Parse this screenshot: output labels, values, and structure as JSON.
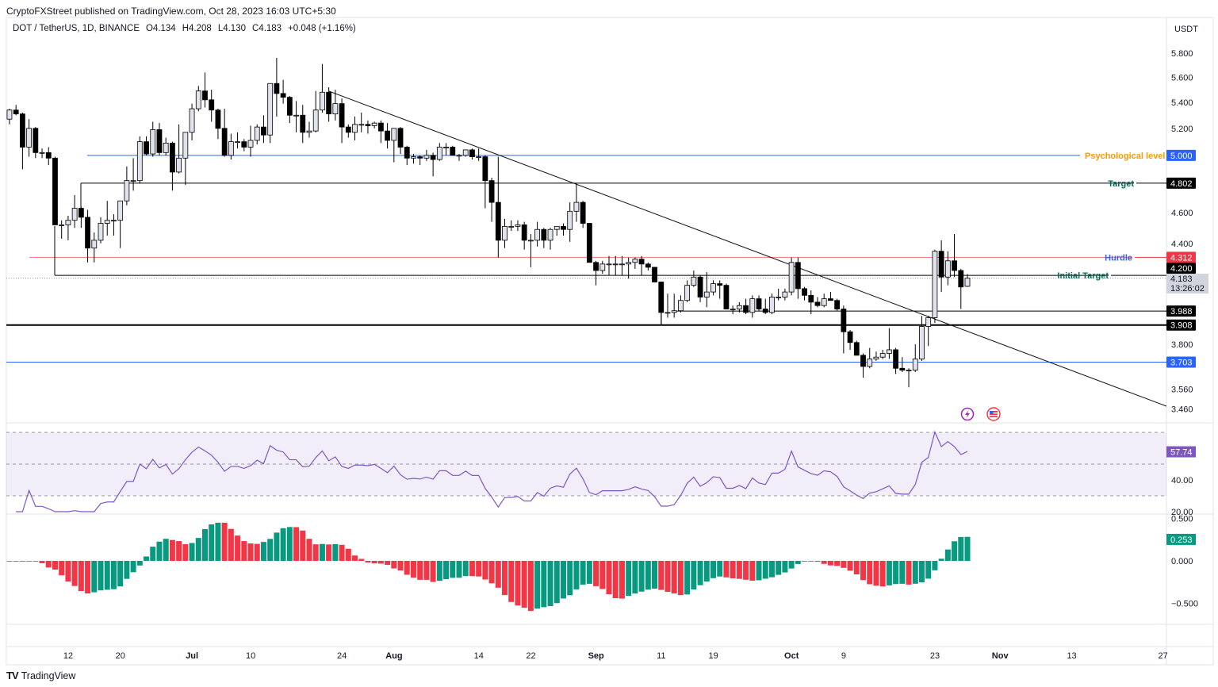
{
  "header": {
    "published": "CryptoFXStreet published on TradingView.com, Oct 28, 2023 16:03 UTC+5:30",
    "symbol": "DOT / TetherUS, 1D, BINANCE",
    "open": "O4.134",
    "high": "H4.208",
    "low": "L4.130",
    "close": "C4.183",
    "change": "+0.048 (+1.16%)"
  },
  "footer": {
    "brand": "TradingView"
  },
  "colors": {
    "up_body": "#e0e3eb",
    "down_body": "#000000",
    "rsi": "#7e57c2",
    "ao_up": "#089981",
    "ao_down": "#f23645",
    "blue_level": "#2962ff",
    "red_level": "#f23645",
    "label_orange": "#ff9800",
    "label_green": "#056656"
  },
  "chart_data": [
    {
      "type": "candlestick",
      "currency": "USDT",
      "yscale": "log",
      "ylim": [
        3.42,
        5.95
      ],
      "grid": false,
      "price_ticks": [
        "5.800",
        "5.600",
        "5.400",
        "5.200",
        "4.600",
        "4.400",
        "3.800",
        "3.560",
        "3.460"
      ],
      "time_ticks": [
        "12",
        "20",
        "Jul",
        "10",
        "24",
        "Aug",
        "14",
        "22",
        "Sep",
        "11",
        "19",
        "Oct",
        "9",
        "23",
        "Nov",
        "13",
        "27"
      ],
      "last_price": "4.183",
      "countdown": "13:26:02",
      "ohlc": [
        [
          5.27,
          5.35,
          5.23,
          5.34
        ],
        [
          5.34,
          5.38,
          5.3,
          5.31
        ],
        [
          5.31,
          5.32,
          4.9,
          5.06
        ],
        [
          5.06,
          5.27,
          4.99,
          5.2
        ],
        [
          5.2,
          5.21,
          4.98,
          5.02
        ],
        [
          5.02,
          5.05,
          4.98,
          5.02
        ],
        [
          5.02,
          5.06,
          4.93,
          4.98
        ],
        [
          4.98,
          4.99,
          4.52,
          4.52
        ],
        [
          4.52,
          4.55,
          4.43,
          4.52
        ],
        [
          4.52,
          4.58,
          4.42,
          4.55
        ],
        [
          4.55,
          4.72,
          4.5,
          4.63
        ],
        [
          4.63,
          4.64,
          4.5,
          4.57
        ],
        [
          4.57,
          4.62,
          4.28,
          4.37
        ],
        [
          4.37,
          4.47,
          4.28,
          4.42
        ],
        [
          4.42,
          4.57,
          4.4,
          4.53
        ],
        [
          4.53,
          4.68,
          4.45,
          4.55
        ],
        [
          4.55,
          4.59,
          4.45,
          4.55
        ],
        [
          4.55,
          4.68,
          4.37,
          4.68
        ],
        [
          4.68,
          4.92,
          4.65,
          4.82
        ],
        [
          4.82,
          4.98,
          4.75,
          4.82
        ],
        [
          4.82,
          5.14,
          4.8,
          5.1
        ],
        [
          5.1,
          5.14,
          5.0,
          5.01
        ],
        [
          5.01,
          5.25,
          4.99,
          5.19
        ],
        [
          5.19,
          5.24,
          5.0,
          5.02
        ],
        [
          5.02,
          5.13,
          5.0,
          5.09
        ],
        [
          5.09,
          5.1,
          4.75,
          4.88
        ],
        [
          4.88,
          5.23,
          4.87,
          4.98
        ],
        [
          4.98,
          5.17,
          4.79,
          5.17
        ],
        [
          5.17,
          5.39,
          5.11,
          5.35
        ],
        [
          5.35,
          5.53,
          5.33,
          5.49
        ],
        [
          5.49,
          5.64,
          5.36,
          5.42
        ],
        [
          5.42,
          5.5,
          5.25,
          5.34
        ],
        [
          5.34,
          5.35,
          5.12,
          5.2
        ],
        [
          5.2,
          5.35,
          4.99,
          5.0
        ],
        [
          5.0,
          5.16,
          4.97,
          5.1
        ],
        [
          5.1,
          5.17,
          5.05,
          5.1
        ],
        [
          5.1,
          5.12,
          5.03,
          5.06
        ],
        [
          5.06,
          5.22,
          4.99,
          5.11
        ],
        [
          5.11,
          5.23,
          5.08,
          5.21
        ],
        [
          5.21,
          5.3,
          5.09,
          5.15
        ],
        [
          5.15,
          5.55,
          5.09,
          5.55
        ],
        [
          5.55,
          5.76,
          5.29,
          5.47
        ],
        [
          5.47,
          5.58,
          5.39,
          5.44
        ],
        [
          5.44,
          5.45,
          5.24,
          5.3
        ],
        [
          5.3,
          5.41,
          5.17,
          5.3
        ],
        [
          5.3,
          5.38,
          5.09,
          5.17
        ],
        [
          5.17,
          5.25,
          5.13,
          5.18
        ],
        [
          5.18,
          5.49,
          5.17,
          5.34
        ],
        [
          5.34,
          5.71,
          5.32,
          5.48
        ],
        [
          5.48,
          5.52,
          5.25,
          5.31
        ],
        [
          5.31,
          5.5,
          5.26,
          5.39
        ],
        [
          5.39,
          5.43,
          5.09,
          5.21
        ],
        [
          5.21,
          5.23,
          5.13,
          5.17
        ],
        [
          5.17,
          5.29,
          5.11,
          5.23
        ],
        [
          5.23,
          5.32,
          5.17,
          5.23
        ],
        [
          5.23,
          5.26,
          5.16,
          5.22
        ],
        [
          5.22,
          5.25,
          5.2,
          5.24
        ],
        [
          5.24,
          5.26,
          5.09,
          5.18
        ],
        [
          5.18,
          5.24,
          5.05,
          5.11
        ],
        [
          5.11,
          5.2,
          4.95,
          5.2
        ],
        [
          5.2,
          5.21,
          5.01,
          5.06
        ],
        [
          5.06,
          5.07,
          4.93,
          4.98
        ],
        [
          4.98,
          5.01,
          4.94,
          4.99
        ],
        [
          4.99,
          5.0,
          4.93,
          4.98
        ],
        [
          4.98,
          5.04,
          4.96,
          5.0
        ],
        [
          5.0,
          5.02,
          4.85,
          4.97
        ],
        [
          4.97,
          5.09,
          4.96,
          5.06
        ],
        [
          5.06,
          5.09,
          5.0,
          5.06
        ],
        [
          5.06,
          5.07,
          5.0,
          5.0
        ],
        [
          5.0,
          5.01,
          4.96,
          5.0
        ],
        [
          5.0,
          5.04,
          4.99,
          5.04
        ],
        [
          5.04,
          5.05,
          4.97,
          4.99
        ],
        [
          4.99,
          5.05,
          4.96,
          4.99
        ],
        [
          4.99,
          5.0,
          4.63,
          4.82
        ],
        [
          4.82,
          4.84,
          4.54,
          4.67
        ],
        [
          4.67,
          4.99,
          4.31,
          4.42
        ],
        [
          4.42,
          4.56,
          4.37,
          4.51
        ],
        [
          4.51,
          4.55,
          4.48,
          4.51
        ],
        [
          4.51,
          4.55,
          4.48,
          4.52
        ],
        [
          4.52,
          4.54,
          4.36,
          4.42
        ],
        [
          4.42,
          4.46,
          4.25,
          4.42
        ],
        [
          4.42,
          4.54,
          4.38,
          4.49
        ],
        [
          4.49,
          4.5,
          4.37,
          4.42
        ],
        [
          4.42,
          4.5,
          4.36,
          4.49
        ],
        [
          4.49,
          4.51,
          4.45,
          4.51
        ],
        [
          4.51,
          4.53,
          4.45,
          4.49
        ],
        [
          4.49,
          4.67,
          4.41,
          4.61
        ],
        [
          4.61,
          4.8,
          4.54,
          4.67
        ],
        [
          4.67,
          4.68,
          4.5,
          4.53
        ],
        [
          4.53,
          4.53,
          4.28,
          4.28
        ],
        [
          4.28,
          4.29,
          4.14,
          4.23
        ],
        [
          4.23,
          4.29,
          4.21,
          4.27
        ],
        [
          4.27,
          4.32,
          4.2,
          4.27
        ],
        [
          4.27,
          4.32,
          4.2,
          4.27
        ],
        [
          4.27,
          4.32,
          4.2,
          4.27
        ],
        [
          4.27,
          4.31,
          4.18,
          4.28
        ],
        [
          4.28,
          4.31,
          4.24,
          4.3
        ],
        [
          4.3,
          4.32,
          4.2,
          4.27
        ],
        [
          4.27,
          4.28,
          4.23,
          4.25
        ],
        [
          4.25,
          4.25,
          4.16,
          4.16
        ],
        [
          4.16,
          4.16,
          3.91,
          3.98
        ],
        [
          3.98,
          4.09,
          3.95,
          3.98
        ],
        [
          3.98,
          4.09,
          3.95,
          3.99
        ],
        [
          3.99,
          4.08,
          3.98,
          4.05
        ],
        [
          4.05,
          4.17,
          4.04,
          4.14
        ],
        [
          4.14,
          4.23,
          4.13,
          4.19
        ],
        [
          4.19,
          4.2,
          4.04,
          4.07
        ],
        [
          4.07,
          4.22,
          4.01,
          4.1
        ],
        [
          4.1,
          4.17,
          4.08,
          4.15
        ],
        [
          4.15,
          4.17,
          4.06,
          4.14
        ],
        [
          4.14,
          4.15,
          4.0,
          4.0
        ],
        [
          4.0,
          4.02,
          3.97,
          4.0
        ],
        [
          4.0,
          4.04,
          3.98,
          4.02
        ],
        [
          4.02,
          4.06,
          3.97,
          3.98
        ],
        [
          3.98,
          4.08,
          3.95,
          4.06
        ],
        [
          4.06,
          4.08,
          3.99,
          4.0
        ],
        [
          4.0,
          4.06,
          3.97,
          3.98
        ],
        [
          3.98,
          4.09,
          3.97,
          4.07
        ],
        [
          4.07,
          4.12,
          4.05,
          4.07
        ],
        [
          4.07,
          4.12,
          4.05,
          4.1
        ],
        [
          4.1,
          4.31,
          4.08,
          4.28
        ],
        [
          4.28,
          4.31,
          4.06,
          4.12
        ],
        [
          4.12,
          4.13,
          4.05,
          4.08
        ],
        [
          4.08,
          4.11,
          3.97,
          4.04
        ],
        [
          4.04,
          4.07,
          4.01,
          4.02
        ],
        [
          4.02,
          4.09,
          4.01,
          4.06
        ],
        [
          4.06,
          4.1,
          4.05,
          4.05
        ],
        [
          4.05,
          4.06,
          3.99,
          4.0
        ],
        [
          4.0,
          4.02,
          3.75,
          3.87
        ],
        [
          3.87,
          3.88,
          3.77,
          3.81
        ],
        [
          3.81,
          3.82,
          3.74,
          3.74
        ],
        [
          3.74,
          3.75,
          3.62,
          3.68
        ],
        [
          3.68,
          3.78,
          3.67,
          3.72
        ],
        [
          3.72,
          3.76,
          3.71,
          3.73
        ],
        [
          3.73,
          3.77,
          3.72,
          3.75
        ],
        [
          3.75,
          3.89,
          3.72,
          3.77
        ],
        [
          3.77,
          3.78,
          3.64,
          3.67
        ],
        [
          3.67,
          3.73,
          3.65,
          3.66
        ],
        [
          3.66,
          3.67,
          3.57,
          3.66
        ],
        [
          3.66,
          3.8,
          3.65,
          3.72
        ],
        [
          3.72,
          3.96,
          3.71,
          3.9
        ],
        [
          3.9,
          3.96,
          3.79,
          3.95
        ],
        [
          3.95,
          4.36,
          3.92,
          4.35
        ],
        [
          4.35,
          4.42,
          4.1,
          4.19
        ],
        [
          4.19,
          4.35,
          4.14,
          4.29
        ],
        [
          4.29,
          4.46,
          4.19,
          4.23
        ],
        [
          4.23,
          4.24,
          4.0,
          4.13
        ],
        [
          4.134,
          4.208,
          4.13,
          4.183
        ]
      ],
      "levels": [
        {
          "name": "Psychological level",
          "price": "5.000",
          "color": "#2962ff",
          "label_color": "#ff9800"
        },
        {
          "name": "Target",
          "price": "4.802",
          "color": "#000000",
          "label_color": "#056656"
        },
        {
          "name": "Hurdle",
          "price": "4.312",
          "color": "#f23645",
          "label_color": "#2962ff"
        },
        {
          "name": "Initial Target",
          "price": "4.200",
          "color": "#000000",
          "label_color": "#056656"
        },
        {
          "name": "",
          "price": "3.988",
          "color": "#000000"
        },
        {
          "name": "",
          "price": "3.908",
          "color": "#000000"
        },
        {
          "name": "",
          "price": "3.703",
          "color": "#2962ff"
        }
      ],
      "trendline": {
        "from": {
          "date": "Jul 22",
          "price": 5.49
        },
        "to": {
          "date": "Oct 27+",
          "price": 3.46
        }
      }
    },
    {
      "type": "line",
      "indicator": "RSI",
      "ylim": [
        10,
        100
      ],
      "bands": [
        70,
        50,
        30
      ],
      "ticks": [
        "40.00",
        "20.00"
      ],
      "last_value": "57.74"
    },
    {
      "type": "histogram",
      "indicator": "Oscillator",
      "ylim": [
        -0.75,
        0.55
      ],
      "ticks": [
        "0.500",
        "0.000",
        "−0.500"
      ],
      "last_value": "0.253"
    }
  ]
}
